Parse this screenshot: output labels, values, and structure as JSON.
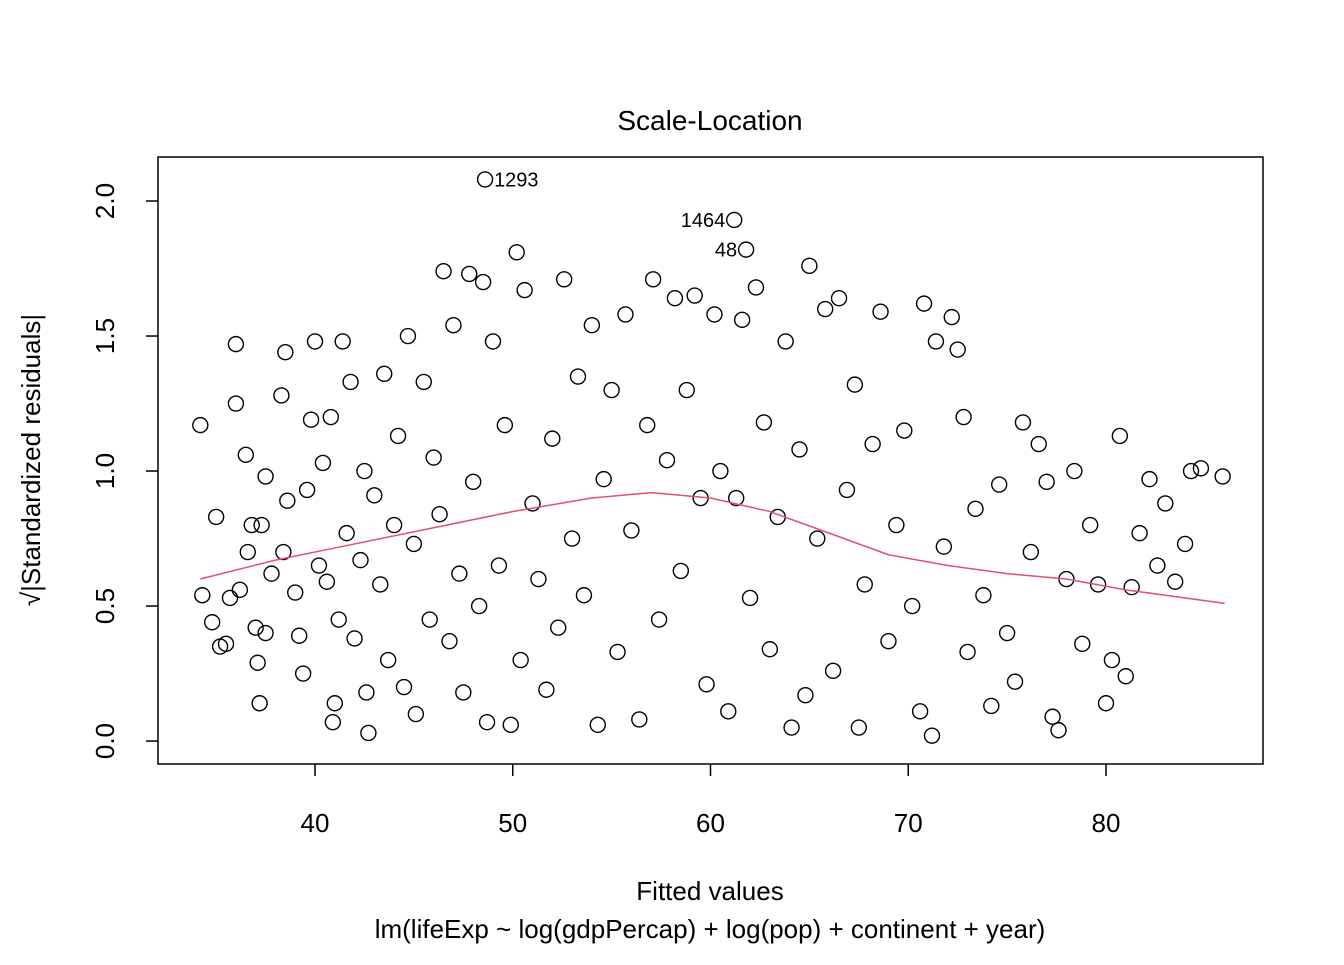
{
  "chart_data": {
    "type": "scatter",
    "title": "Scale-Location",
    "xlabel": "Fitted values",
    "subtitle": "lm(lifeExp ~ log(gdpPercap) + log(pop) + continent + year)",
    "ylabel": "√|Standardized residuals|",
    "xlim": [
      32.06,
      87.94
    ],
    "ylim": [
      -0.085,
      2.163
    ],
    "xticks": [
      40,
      50,
      60,
      70,
      80
    ],
    "yticks": [
      {
        "value": 0,
        "label": "0.0"
      },
      {
        "value": 0.5,
        "label": "0.5"
      },
      {
        "value": 1,
        "label": "1.0"
      },
      {
        "value": 1.5,
        "label": "1.5"
      },
      {
        "value": 2,
        "label": "2.0"
      }
    ],
    "color": "#000000",
    "x": [
      48.6,
      61.2,
      61.8,
      34.2,
      34.3,
      34.8,
      35.0,
      35.2,
      35.5,
      35.7,
      36.0,
      36.0,
      36.2,
      36.5,
      36.6,
      36.8,
      37.0,
      37.1,
      37.2,
      37.3,
      37.5,
      37.5,
      37.8,
      38.3,
      38.4,
      38.5,
      38.6,
      39.0,
      39.2,
      39.4,
      39.6,
      39.8,
      40.0,
      40.2,
      40.4,
      40.6,
      40.8,
      40.9,
      41.0,
      41.2,
      41.4,
      41.6,
      41.8,
      42.0,
      42.3,
      42.5,
      42.6,
      42.7,
      43.0,
      43.3,
      43.5,
      43.7,
      44.0,
      44.2,
      44.5,
      44.7,
      45.0,
      45.1,
      45.5,
      45.8,
      46.0,
      46.3,
      46.5,
      46.8,
      47.0,
      47.3,
      47.5,
      47.8,
      48.0,
      48.3,
      48.5,
      48.7,
      49.0,
      49.3,
      49.6,
      49.9,
      50.2,
      50.4,
      50.6,
      51.0,
      51.3,
      51.7,
      52.0,
      52.3,
      52.6,
      53.0,
      53.3,
      53.6,
      54.0,
      54.3,
      54.6,
      55.0,
      55.3,
      55.7,
      56.0,
      56.4,
      56.8,
      57.1,
      57.4,
      57.8,
      58.2,
      58.5,
      58.8,
      59.2,
      59.5,
      59.8,
      60.2,
      60.5,
      60.9,
      61.3,
      61.6,
      62.0,
      62.3,
      62.7,
      63.0,
      63.4,
      63.8,
      64.1,
      64.5,
      64.8,
      65.0,
      65.4,
      65.8,
      66.2,
      66.5,
      66.9,
      67.3,
      67.5,
      67.8,
      68.2,
      68.6,
      69.0,
      69.4,
      69.8,
      70.2,
      70.6,
      70.8,
      71.2,
      71.4,
      71.8,
      72.2,
      72.5,
      72.8,
      73.0,
      73.4,
      73.8,
      74.2,
      74.6,
      75.0,
      75.4,
      75.8,
      76.2,
      76.6,
      77.0,
      77.3,
      77.6,
      78.0,
      78.4,
      78.8,
      79.2,
      79.6,
      80.0,
      80.3,
      80.7,
      81.0,
      81.3,
      81.7,
      82.2,
      82.6,
      83.0,
      83.5,
      84.0,
      84.3,
      84.8,
      85.9
    ],
    "values": [
      2.08,
      1.93,
      1.82,
      1.17,
      0.54,
      0.44,
      0.83,
      0.35,
      0.36,
      0.53,
      1.47,
      1.25,
      0.56,
      1.06,
      0.7,
      0.8,
      0.42,
      0.29,
      0.14,
      0.8,
      0.98,
      0.4,
      0.62,
      1.28,
      0.7,
      1.44,
      0.89,
      0.55,
      0.39,
      0.25,
      0.93,
      1.19,
      1.48,
      0.65,
      1.03,
      0.59,
      1.2,
      0.07,
      0.14,
      0.45,
      1.48,
      0.77,
      1.33,
      0.38,
      0.67,
      1.0,
      0.18,
      0.03,
      0.91,
      0.58,
      1.36,
      0.3,
      0.8,
      1.13,
      0.2,
      1.5,
      0.73,
      0.1,
      1.33,
      0.45,
      1.05,
      0.84,
      1.74,
      0.37,
      1.54,
      0.62,
      0.18,
      1.73,
      0.96,
      0.5,
      1.7,
      0.07,
      1.48,
      0.65,
      1.17,
      0.06,
      1.81,
      0.3,
      1.67,
      0.88,
      0.6,
      0.19,
      1.12,
      0.42,
      1.71,
      0.75,
      1.35,
      0.54,
      1.54,
      0.06,
      0.97,
      1.3,
      0.33,
      1.58,
      0.78,
      0.08,
      1.17,
      1.71,
      0.45,
      1.04,
      1.64,
      0.63,
      1.3,
      1.65,
      0.9,
      0.21,
      1.58,
      1.0,
      0.11,
      0.9,
      1.56,
      0.53,
      1.68,
      1.18,
      0.34,
      0.83,
      1.48,
      0.05,
      1.08,
      0.17,
      1.76,
      0.75,
      1.6,
      0.26,
      1.64,
      0.93,
      1.32,
      0.05,
      0.58,
      1.1,
      1.59,
      0.37,
      0.8,
      1.15,
      0.5,
      0.11,
      1.62,
      0.02,
      1.48,
      0.72,
      1.57,
      1.45,
      1.2,
      0.33,
      0.86,
      0.54,
      0.13,
      0.95,
      0.4,
      0.22,
      1.18,
      0.7,
      1.1,
      0.96,
      0.09,
      0.04,
      0.6,
      1.0,
      0.36,
      0.8,
      0.58,
      0.14,
      0.3,
      1.13,
      0.24,
      0.57,
      0.77,
      0.97,
      0.65,
      0.88,
      0.59,
      0.73,
      1.0,
      1.01,
      0.98
    ],
    "point_labels": [
      {
        "index": 0,
        "label": "1293",
        "side": "right"
      },
      {
        "index": 1,
        "label": "1464",
        "side": "left"
      },
      {
        "index": 2,
        "label": "48",
        "side": "left"
      }
    ],
    "smooth": {
      "color": "#DF536B",
      "x": [
        34.2,
        38,
        42,
        46,
        50,
        54,
        57,
        60,
        63,
        66,
        69,
        72,
        75,
        78,
        81,
        86
      ],
      "values": [
        0.6,
        0.67,
        0.73,
        0.79,
        0.85,
        0.9,
        0.92,
        0.9,
        0.85,
        0.77,
        0.69,
        0.65,
        0.62,
        0.6,
        0.56,
        0.51
      ]
    }
  }
}
